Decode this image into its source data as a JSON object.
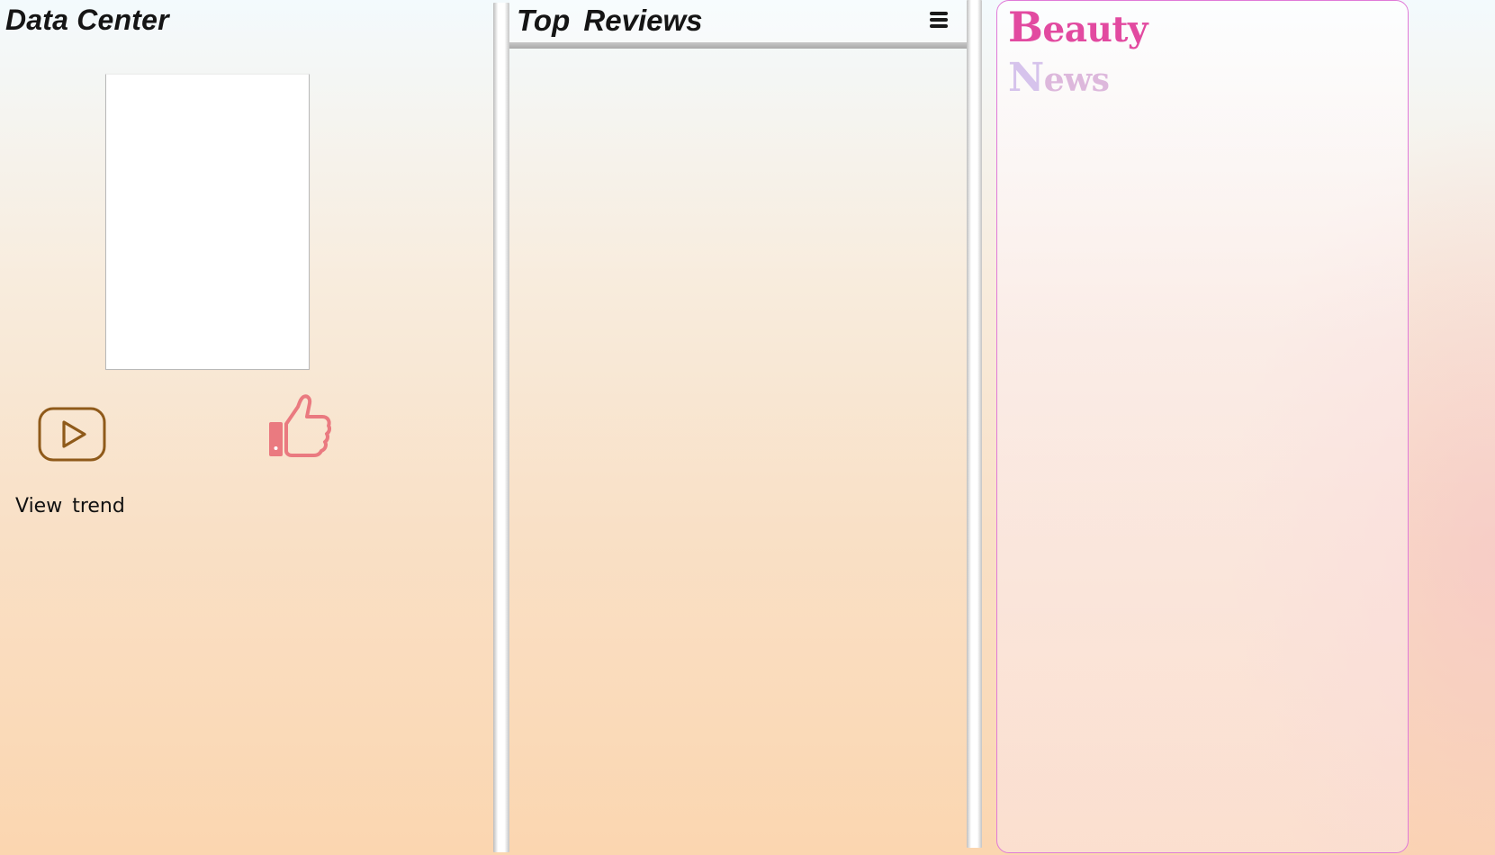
{
  "data_center": {
    "title": "Data Center",
    "view_trend_label": "View  trend",
    "play_icon": "play-icon",
    "like_icon": "thumbs-up-icon"
  },
  "top_reviews": {
    "title": "Top  Reviews",
    "menu_icon": "menu-icon"
  },
  "beauty_news": {
    "title_line1_cap": "B",
    "title_line1_rest": "eauty",
    "title_line2_cap": "N",
    "title_line2_rest": "ews"
  },
  "colors": {
    "play_icon": "#8f5a1a",
    "like_icon": "#ea7a80",
    "news_border": "#e07ad8",
    "beauty_text": "#e24aa0",
    "news_text": "#ddb8dc"
  }
}
